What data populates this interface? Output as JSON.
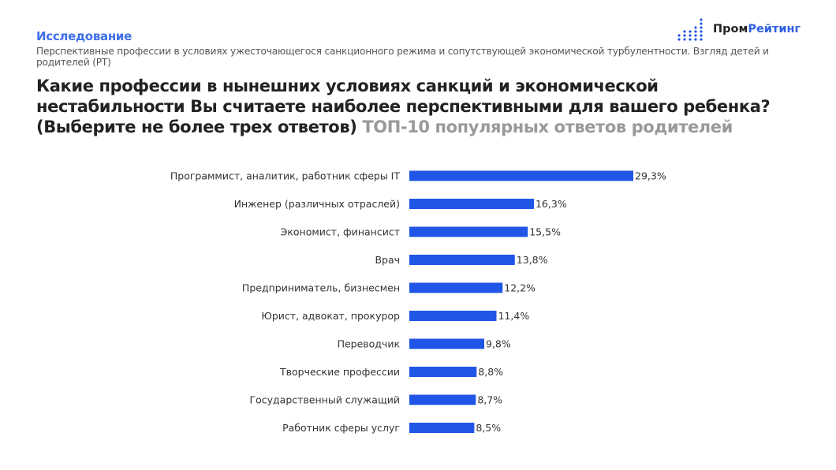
{
  "header": {
    "kicker": "Исследование",
    "subtitle": "Перспективные профессии в условиях ужесточающегося санкционного режима и сопутствующей экономической турбулентности. Взгляд детей и родителей (РТ)",
    "title_main": "Какие профессии в нынешних условиях санкций и экономической нестабильности Вы считаете наиболее перспективными для вашего ребенка? (Выберите не более трех ответов)",
    "title_accent": "ТОП-10 популярных ответов родителей"
  },
  "logo": {
    "part1": "Пром",
    "part2": "Рейтинг"
  },
  "colors": {
    "bar": "#1f56e6",
    "accent": "#3f6fe8"
  },
  "chart_data": {
    "type": "bar",
    "orientation": "horizontal",
    "categories": [
      "Программист, аналитик, работник сферы IT",
      "Инженер (различных отраслей)",
      "Экономист, финансист",
      "Врач",
      "Предприниматель, бизнесмен",
      "Юрист, адвокат, прокурор",
      "Переводчик",
      "Творческие профессии",
      "Государственный служащий",
      "Работник сферы услуг"
    ],
    "values": [
      29.3,
      16.3,
      15.5,
      13.8,
      12.2,
      11.4,
      9.8,
      8.8,
      8.7,
      8.5
    ],
    "value_labels": [
      "29,3%",
      "16,3%",
      "15,5%",
      "13,8%",
      "12,2%",
      "11,4%",
      "9,8%",
      "8,8%",
      "8,7%",
      "8,5%"
    ],
    "xlim": [
      0,
      29.3
    ],
    "grid": false,
    "legend": "none"
  }
}
